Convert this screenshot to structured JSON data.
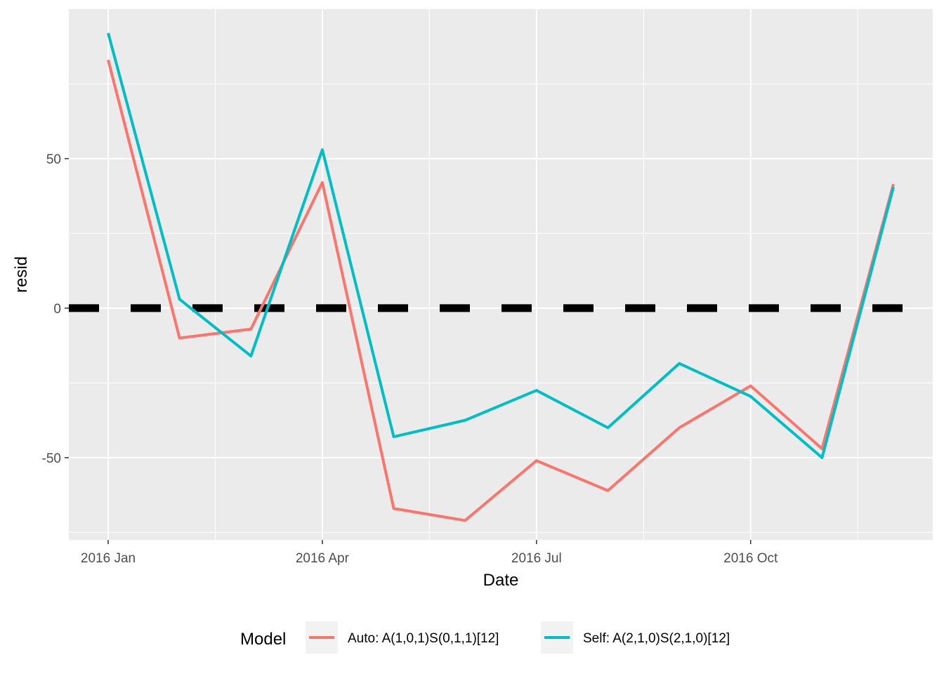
{
  "chart_data": {
    "type": "line",
    "x": [
      "2016-01",
      "2016-02",
      "2016-03",
      "2016-04",
      "2016-05",
      "2016-06",
      "2016-07",
      "2016-08",
      "2016-09",
      "2016-10",
      "2016-11",
      "2016-12"
    ],
    "series": [
      {
        "name": "Auto: A(1,0,1)S(0,1,1)[12]",
        "color": "#F8766D",
        "values": [
          83,
          -10,
          -7,
          42,
          -67,
          -71,
          -51,
          -61,
          -40,
          -26,
          -47,
          41.5
        ]
      },
      {
        "name": "Self: A(2,1,0)S(2,1,0)[12]",
        "color": "#00BFC4",
        "values": [
          92,
          3,
          -16,
          53,
          -43,
          -37.5,
          -27.5,
          -40,
          -18.5,
          -29.5,
          -50,
          40.5
        ]
      }
    ],
    "reference_line": {
      "y": 0,
      "style": "dashed",
      "color": "#000000"
    },
    "xlabel": "Date",
    "ylabel": "resid",
    "xticks": [
      {
        "label": "2016 Jan",
        "month": 0
      },
      {
        "label": "2016 Apr",
        "month": 3
      },
      {
        "label": "2016 Jul",
        "month": 6
      },
      {
        "label": "2016 Oct",
        "month": 9
      }
    ],
    "yticks": [
      -50,
      0,
      50
    ],
    "ylim": [
      -77.5,
      100
    ],
    "grid": true,
    "legend_title": "Model",
    "legend_position": "bottom",
    "panel_color": "#EBEBEB",
    "grid_color": "#FFFFFF"
  }
}
